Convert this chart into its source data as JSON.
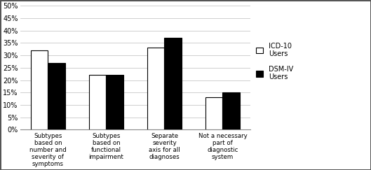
{
  "categories": [
    "Subtypes\nbased on\nnumber and\nseverity of\nsymptoms",
    "Subtypes\nbased on\nfunctional\nimpairment",
    "Separate\nseverity\naxis for all\ndiagnoses",
    "Not a necessary\npart of\ndiagnostic\nsystem"
  ],
  "icd10_values": [
    32,
    22,
    33,
    13
  ],
  "dsm4_values": [
    27,
    22,
    37,
    15
  ],
  "icd10_color": "#ffffff",
  "dsm4_color": "#000000",
  "bar_edgecolor": "#000000",
  "background_color": "#ffffff",
  "ylim": [
    0,
    50
  ],
  "yticks": [
    0,
    5,
    10,
    15,
    20,
    25,
    30,
    35,
    40,
    45,
    50
  ],
  "legend_labels": [
    "ICD-10\nUsers",
    "DSM-IV\nUsers"
  ],
  "bar_width": 0.3,
  "grid_color": "#c8c8c8",
  "figure_edgecolor": "#555555",
  "tick_fontsize": 7,
  "xticklabel_fontsize": 6.2,
  "legend_fontsize": 7
}
